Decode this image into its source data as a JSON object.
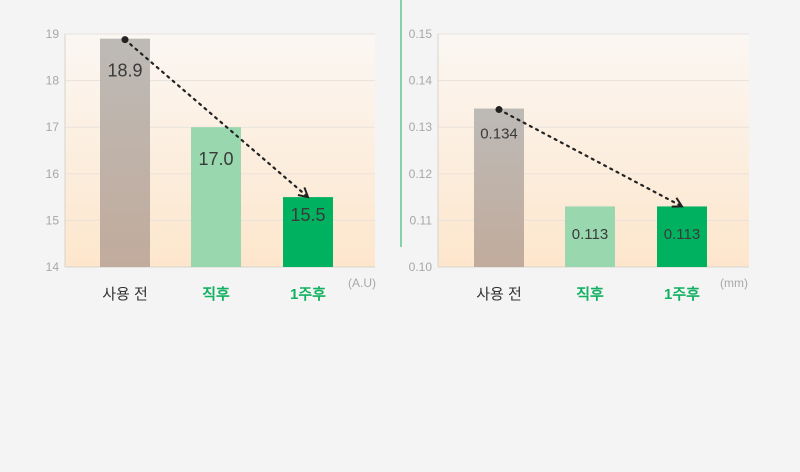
{
  "colors": {
    "divider": "#12b161",
    "highlight_label": "#12b161",
    "bar_before": "#b7b0ab",
    "bar_immediate": "#99d7ae",
    "bar_after_week": "#00b25f",
    "grid": "#e9e2dc"
  },
  "chart_data": [
    {
      "type": "bar",
      "categories": [
        "사용 전",
        "직후",
        "1주후"
      ],
      "values": [
        18.9,
        17.0,
        15.5
      ],
      "value_labels": [
        "18.9",
        "17.0",
        "15.5"
      ],
      "unit": "(A.U)",
      "ylim": [
        14,
        19
      ],
      "yticks": [
        "14",
        "15",
        "16",
        "17",
        "18",
        "19"
      ],
      "highlighted_categories": [
        "직후",
        "1주후"
      ],
      "trend_arrow": "dotted arrow from 사용 전 to 1주후",
      "grid": true
    },
    {
      "type": "bar",
      "categories": [
        "사용 전",
        "직후",
        "1주후"
      ],
      "values": [
        0.134,
        0.113,
        0.113
      ],
      "value_labels": [
        "0.134",
        "0.113",
        "0.113"
      ],
      "unit": "(mm)",
      "ylim": [
        0.1,
        0.15
      ],
      "yticks": [
        "0.10",
        "0.11",
        "0.12",
        "0.13",
        "0.14",
        "0.15"
      ],
      "highlighted_categories": [
        "직후",
        "1주후"
      ],
      "trend_arrow": "dotted arrow from 사용 전 to 1주후",
      "grid": true
    }
  ]
}
